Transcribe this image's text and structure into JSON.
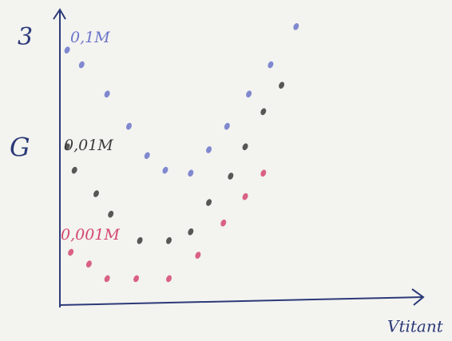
{
  "chart_data": {
    "type": "scatter",
    "y_label": "G",
    "x_label": "Vtitant",
    "annotation": "3",
    "xlim": [
      0,
      10
    ],
    "ylim": [
      0,
      10
    ],
    "series": [
      {
        "name": "0,1M",
        "color": "#6b74c9",
        "x": [
          0.2,
          0.6,
          1.3,
          1.9,
          2.4,
          2.9,
          3.6,
          4.1,
          4.6,
          5.2,
          5.8,
          6.5
        ],
        "values": [
          8.7,
          8.2,
          7.2,
          6.1,
          5.1,
          4.6,
          4.5,
          5.3,
          6.1,
          7.2,
          8.2,
          9.5
        ]
      },
      {
        "name": "0,01M",
        "color": "#3b3b3b",
        "x": [
          0.2,
          0.4,
          1.0,
          1.4,
          2.2,
          3.0,
          3.6,
          4.1,
          4.7,
          5.1,
          5.6,
          6.1
        ],
        "values": [
          5.4,
          4.6,
          3.8,
          3.1,
          2.2,
          2.2,
          2.5,
          3.5,
          4.4,
          5.4,
          6.6,
          7.5
        ]
      },
      {
        "name": "0,001M",
        "color": "#d4466f",
        "x": [
          0.3,
          0.8,
          1.3,
          2.1,
          3.0,
          3.8,
          4.5,
          5.1,
          5.6
        ],
        "values": [
          1.8,
          1.4,
          0.9,
          0.9,
          0.9,
          1.7,
          2.8,
          3.7,
          4.5
        ]
      }
    ]
  }
}
